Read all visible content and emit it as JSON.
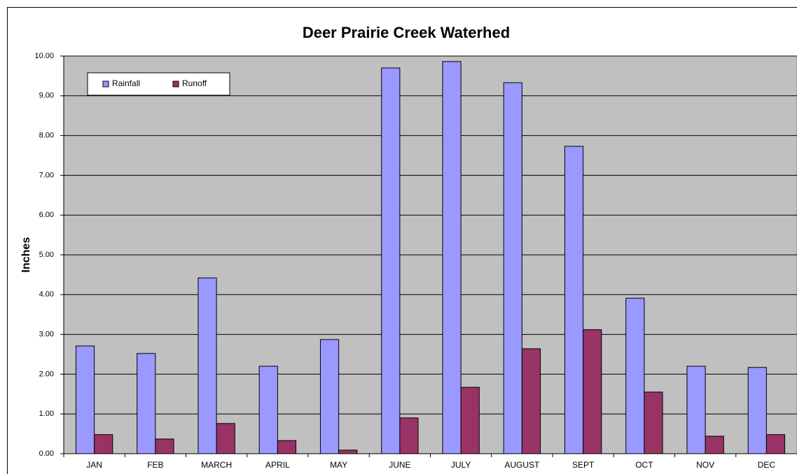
{
  "chart_data": {
    "type": "bar",
    "title": "Deer Prairie Creek Waterhed",
    "y_label": "Inches",
    "categories": [
      "JAN",
      "FEB",
      "MARCH",
      "APRIL",
      "MAY",
      "JUNE",
      "JULY",
      "AUGUST",
      "SEPT",
      "OCT",
      "NOV",
      "DEC"
    ],
    "series": [
      {
        "name": "Rainfall",
        "color": "#9999ff",
        "values": [
          2.71,
          2.52,
          4.42,
          2.2,
          2.87,
          9.7,
          9.86,
          9.33,
          7.73,
          3.91,
          2.2,
          2.17
        ]
      },
      {
        "name": "Runoff",
        "color": "#993366",
        "values": [
          0.48,
          0.37,
          0.76,
          0.33,
          0.09,
          0.9,
          1.67,
          2.64,
          3.12,
          1.55,
          0.44,
          0.48
        ]
      }
    ],
    "ylim": [
      0,
      10
    ],
    "yticks": [
      {
        "value": 0,
        "label": "0.00"
      },
      {
        "value": 1,
        "label": "1.00"
      },
      {
        "value": 2,
        "label": "2.00"
      },
      {
        "value": 3,
        "label": "3.00"
      },
      {
        "value": 4,
        "label": "4.00"
      },
      {
        "value": 5,
        "label": "5.00"
      },
      {
        "value": 6,
        "label": "6.00"
      },
      {
        "value": 7,
        "label": "7.00"
      },
      {
        "value": 8,
        "label": "8.00"
      },
      {
        "value": 9,
        "label": "9.00"
      },
      {
        "value": 10,
        "label": "10.00"
      }
    ],
    "grid": true,
    "legend": "top-left",
    "plot_background": "#c0c0c0"
  }
}
